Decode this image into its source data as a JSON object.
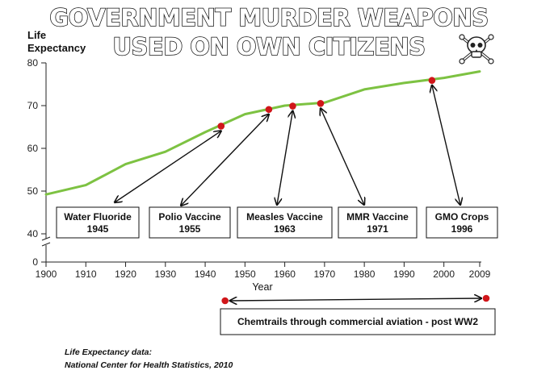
{
  "headline": {
    "line1": "GOVERNMENT MURDER WEAPONS",
    "line2": "USED ON OWN CITIZENS",
    "icon": "skull-and-crossbones-icon"
  },
  "chart_data": {
    "type": "line",
    "title": "",
    "ylabel_line1": "Life",
    "ylabel_line2": "Expectancy",
    "xlabel": "Year",
    "x_ticks": [
      "1900",
      "1910",
      "1920",
      "1930",
      "1940",
      "1950",
      "1960",
      "1970",
      "1980",
      "1990",
      "2000",
      "2009"
    ],
    "y_ticks": [
      "0",
      "40",
      "50",
      "60",
      "70",
      "80"
    ],
    "y_axis_break": [
      0,
      40
    ],
    "ylim": [
      40,
      80
    ],
    "xlim": [
      1900,
      2009
    ],
    "series": [
      {
        "color": "#7dc242",
        "x": [
          1900,
          1910,
          1920,
          1930,
          1940,
          1950,
          1960,
          1970,
          1980,
          1990,
          2000,
          2009
        ],
        "y": [
          49.2,
          51.4,
          56.3,
          59.2,
          63.8,
          68.0,
          70.0,
          70.7,
          73.8,
          75.3,
          76.5,
          78.0
        ]
      }
    ],
    "annotations": [
      {
        "label": "Water Fluoride",
        "year": "1945",
        "point": [
          1944,
          65.2
        ],
        "color": "#d0161a"
      },
      {
        "label": "Polio Vaccine",
        "year": "1955",
        "point": [
          1956,
          69.1
        ],
        "color": "#d0161a"
      },
      {
        "label": "Measles Vaccine",
        "year": "1963",
        "point": [
          1962,
          69.9
        ],
        "color": "#d0161a"
      },
      {
        "label": "MMR Vaccine",
        "year": "1971",
        "point": [
          1969,
          70.5
        ],
        "color": "#d0161a"
      },
      {
        "label": "GMO Crops",
        "year": "1996",
        "point": [
          1997,
          75.9
        ],
        "color": "#d0161a"
      }
    ],
    "chemtrails": {
      "label": "Chemtrails through commercial aviation - post WW2",
      "start_year": 1945,
      "end_year": 2009
    }
  },
  "source_note": {
    "line1": "Life Expectancy data:",
    "line2": "National Center for Health Statistics, 2010"
  }
}
